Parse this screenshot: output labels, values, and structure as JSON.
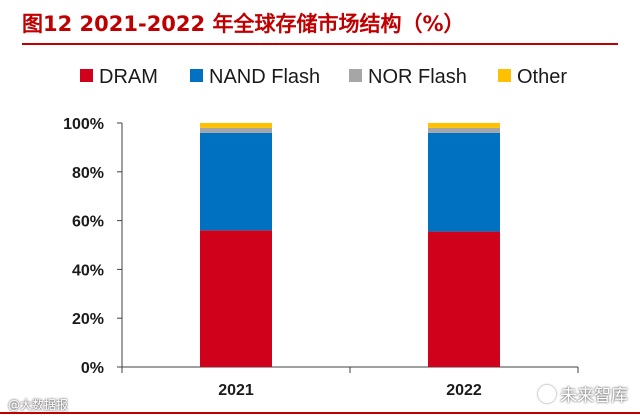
{
  "chart_data": {
    "type": "bar",
    "stacked": true,
    "title": "图12  2021-2022 年全球存储市场结构（%）",
    "categories": [
      "2021",
      "2022"
    ],
    "series": [
      {
        "name": "DRAM",
        "color": "#d0021b",
        "values": [
          56,
          55.5
        ]
      },
      {
        "name": "NAND Flash",
        "color": "#0070c0",
        "values": [
          40,
          40.5
        ]
      },
      {
        "name": "NOR Flash",
        "color": "#a6a6a6",
        "values": [
          2,
          2
        ]
      },
      {
        "name": "Other",
        "color": "#ffc000",
        "values": [
          2,
          2
        ]
      }
    ],
    "ylim": [
      0,
      100
    ],
    "yticks": [
      "0%",
      "20%",
      "40%",
      "60%",
      "80%",
      "100%"
    ],
    "xlabel": "",
    "ylabel": "",
    "grid": false,
    "legend_position": "top"
  },
  "watermarks": {
    "left": "@大数据报",
    "right": "未来智库"
  },
  "colors": {
    "title": "#c00000",
    "axis": "#404040"
  }
}
